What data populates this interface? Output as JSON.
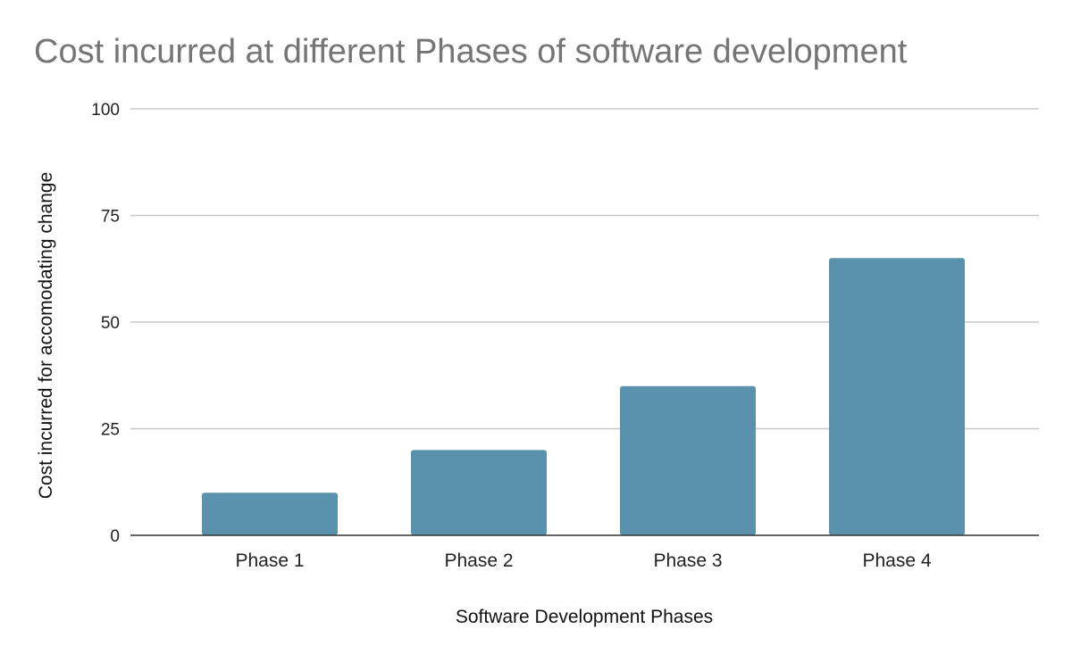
{
  "chart_data": {
    "type": "bar",
    "title": "Cost incurred at different Phases of software development",
    "xlabel": "Software Development Phases",
    "ylabel": "Cost incurred for accomodating change",
    "categories": [
      "Phase 1",
      "Phase 2",
      "Phase 3",
      "Phase 4"
    ],
    "values": [
      10,
      20,
      35,
      65
    ],
    "ylim": [
      0,
      100
    ],
    "yticks": [
      0,
      25,
      50,
      75,
      100
    ],
    "grid": true,
    "legend": "none",
    "colors": {
      "bar": "#5a92ae",
      "grid": "#c8c8c8",
      "baseline": "#333333",
      "title": "#757575"
    }
  }
}
